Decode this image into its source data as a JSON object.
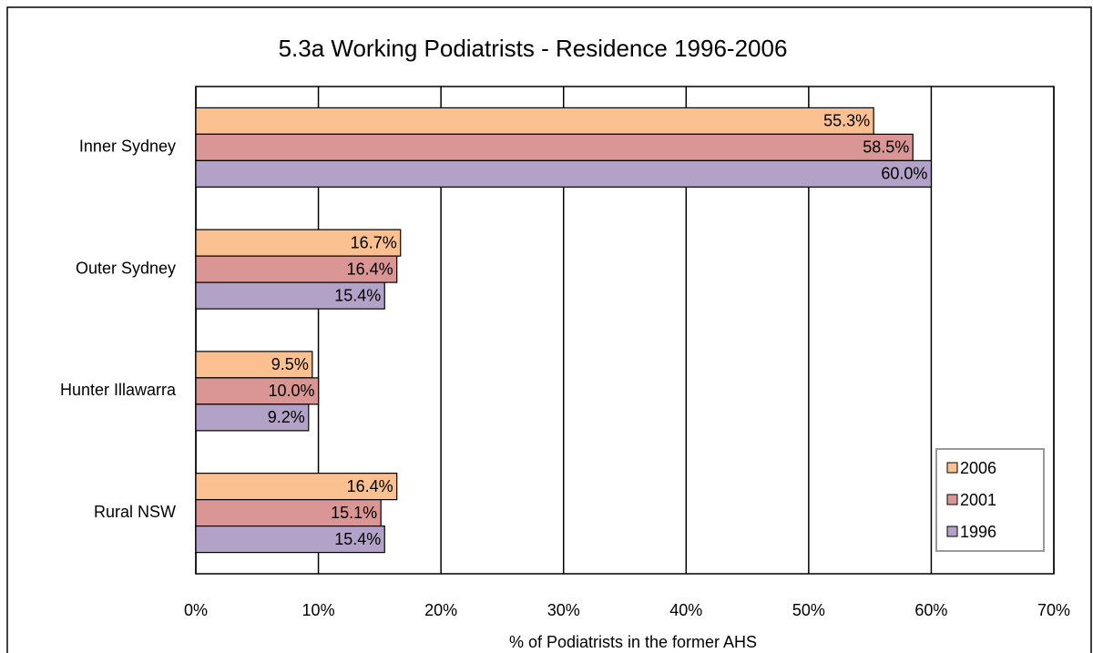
{
  "chart_data": {
    "type": "bar",
    "orientation": "horizontal",
    "title": "5.3a Working Podiatrists - Residence 1996-2006",
    "x_label": "% of Podiatrists in the former AHS",
    "categories": [
      "Inner Sydney",
      "Outer Sydney",
      "Hunter Illawarra",
      "Rural NSW"
    ],
    "series": [
      {
        "name": "2006",
        "color": "#fac090",
        "values": [
          55.3,
          16.7,
          9.5,
          16.4
        ],
        "value_labels": [
          "55.3%",
          "16.7%",
          "9.5%",
          "16.4%"
        ]
      },
      {
        "name": "2001",
        "color": "#d99694",
        "values": [
          58.5,
          16.4,
          10.0,
          15.1
        ],
        "value_labels": [
          "58.5%",
          "16.4%",
          "10.0%",
          "15.1%"
        ]
      },
      {
        "name": "1996",
        "color": "#b3a2c7",
        "values": [
          60.0,
          15.4,
          9.2,
          15.4
        ],
        "value_labels": [
          "60.0%",
          "15.4%",
          "9.2%",
          "15.4%"
        ]
      }
    ],
    "xlim": [
      0,
      70
    ],
    "xticks": [
      {
        "value": 0,
        "label": "0%"
      },
      {
        "value": 10,
        "label": "10%"
      },
      {
        "value": 20,
        "label": "20%"
      },
      {
        "value": 30,
        "label": "30%"
      },
      {
        "value": 40,
        "label": "40%"
      },
      {
        "value": 50,
        "label": "50%"
      },
      {
        "value": 60,
        "label": "60%"
      },
      {
        "value": 70,
        "label": "70%"
      }
    ],
    "grid": true,
    "legend": "lower right"
  }
}
